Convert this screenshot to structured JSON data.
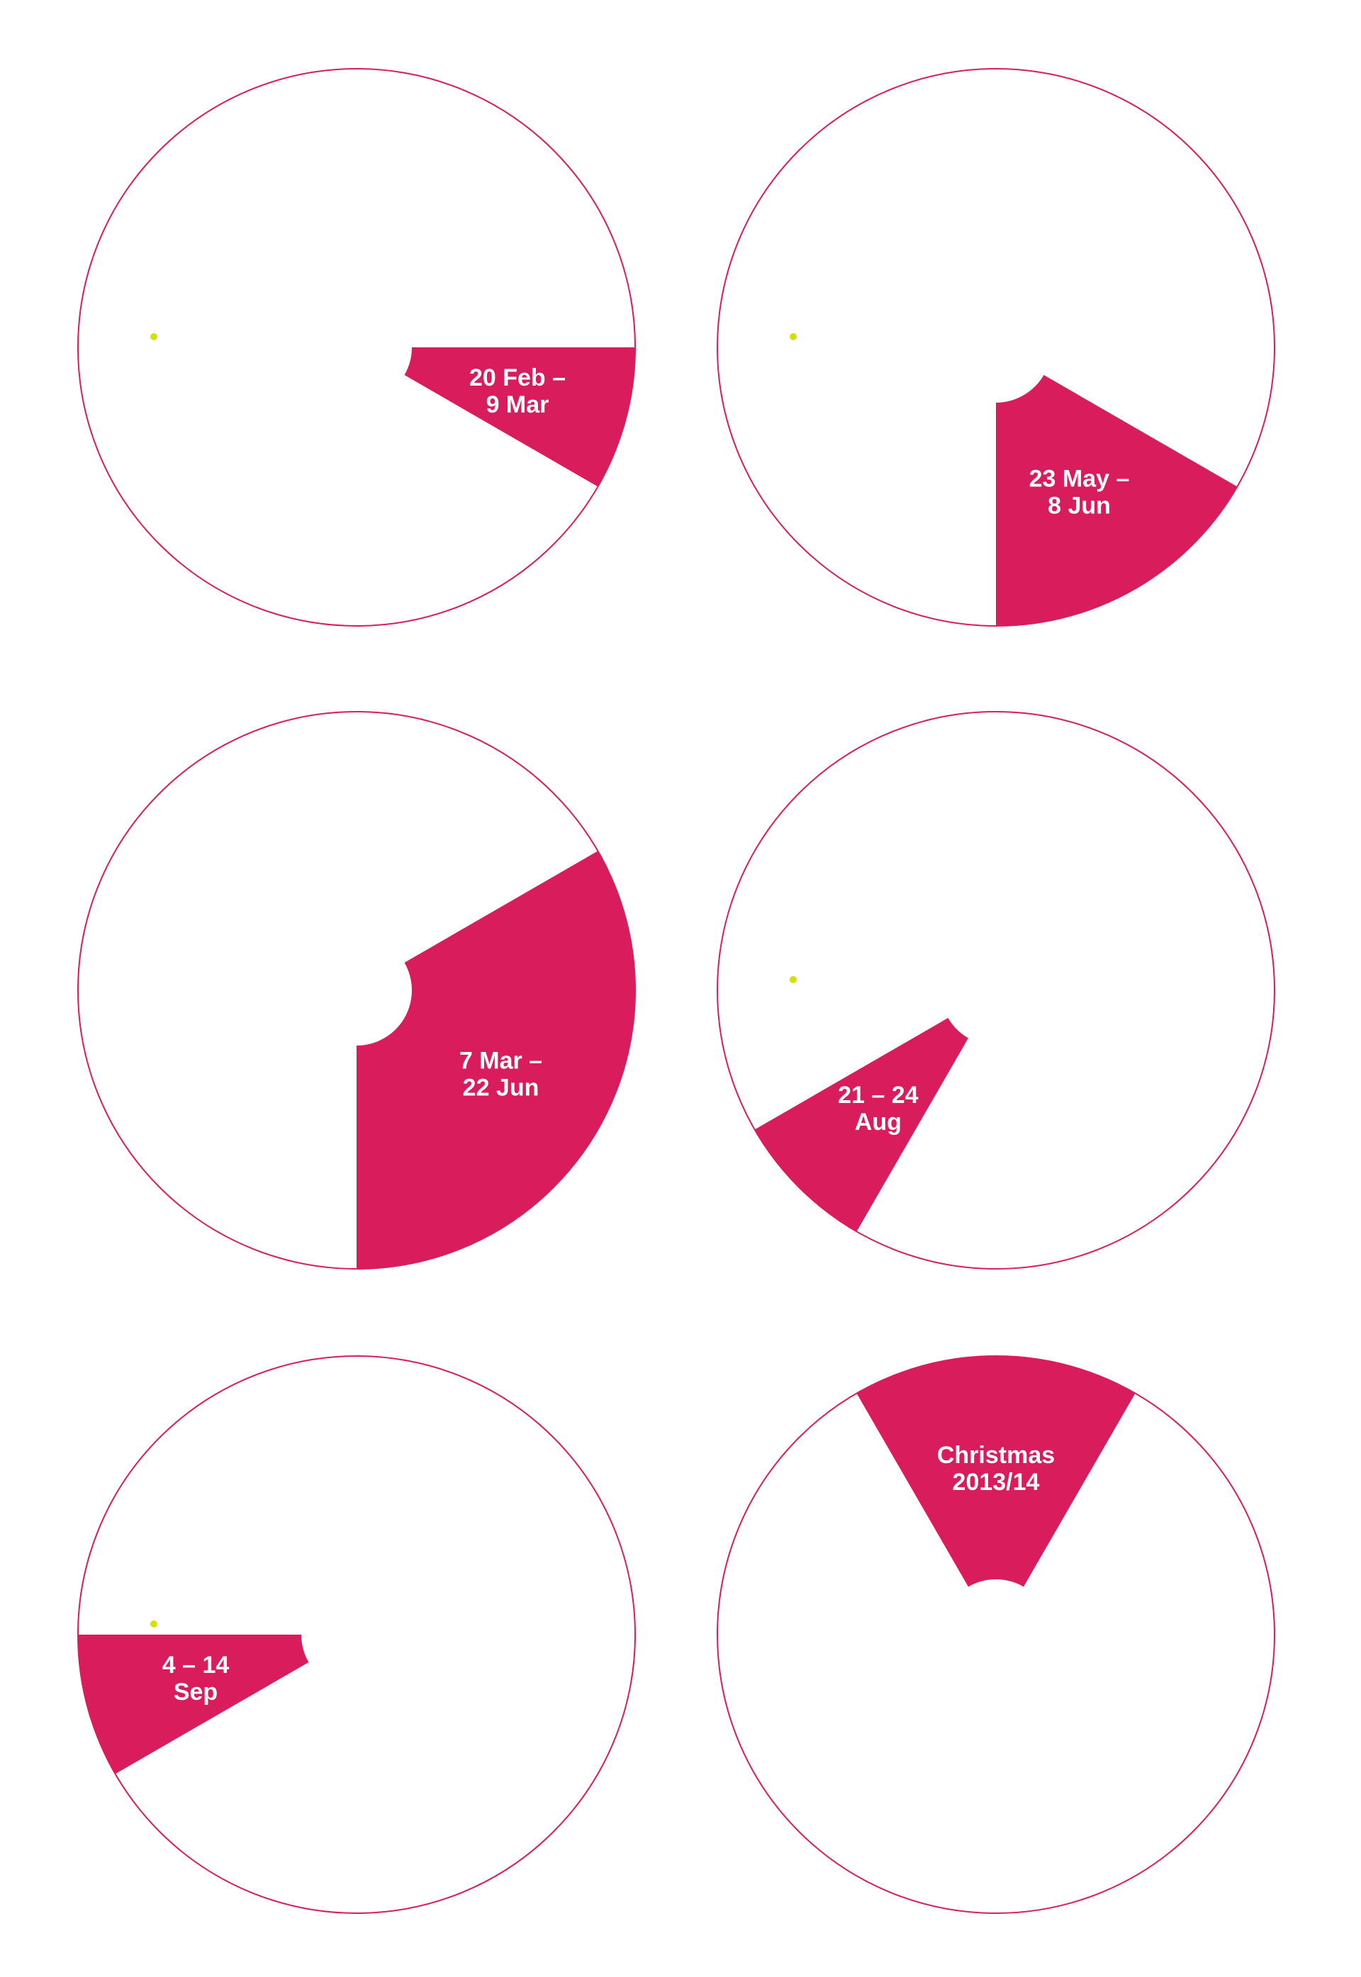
{
  "colors": {
    "background": "#ffffff",
    "accent": "#d91c5c",
    "outline": "#d91c5c",
    "dot": "#d4e000",
    "label_text": "#ffffff"
  },
  "wheels": [
    {
      "id": "wheel-1",
      "start_deg": 0,
      "end_deg": 30,
      "label_lines": [
        "20 Feb –",
        "9 Mar"
      ],
      "has_dot": true
    },
    {
      "id": "wheel-2",
      "start_deg": 30,
      "end_deg": 90,
      "label_lines": [
        "23 May –",
        "8 Jun"
      ],
      "has_dot": true
    },
    {
      "id": "wheel-3",
      "start_deg": -30,
      "end_deg": 90,
      "label_lines": [
        "7 Mar –",
        "22 Jun"
      ],
      "has_dot": false
    },
    {
      "id": "wheel-4",
      "start_deg": 120,
      "end_deg": 150,
      "label_lines": [
        "21 – 24",
        "Aug"
      ],
      "has_dot": true
    },
    {
      "id": "wheel-5",
      "start_deg": 150,
      "end_deg": 180,
      "label_lines": [
        "4 – 14",
        "Sep"
      ],
      "has_dot": true
    },
    {
      "id": "wheel-6",
      "start_deg": 240,
      "end_deg": 300,
      "label_lines": [
        "Christmas",
        "2013/14"
      ],
      "has_dot": false
    }
  ]
}
